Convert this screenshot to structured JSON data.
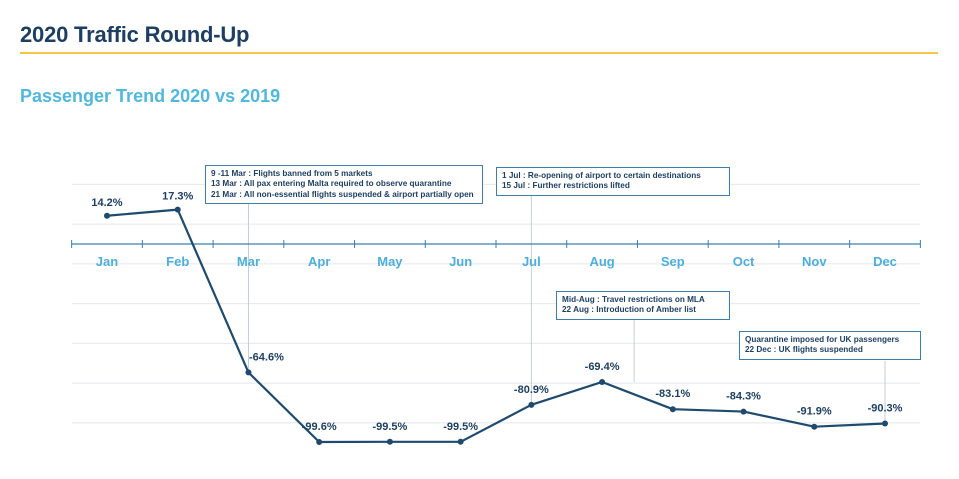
{
  "header": {
    "title": "2020 Traffic Round-Up"
  },
  "chart_data": {
    "type": "line",
    "title": "Passenger Trend 2020 vs 2019",
    "categories": [
      "Jan",
      "Feb",
      "Mar",
      "Apr",
      "May",
      "Jun",
      "Jul",
      "Aug",
      "Sep",
      "Oct",
      "Nov",
      "Dec"
    ],
    "series": [
      {
        "values": [
          14.2,
          17.3,
          -64.6,
          -99.6,
          -99.5,
          -99.5,
          -80.9,
          -69.4,
          -83.1,
          -84.3,
          -91.9,
          -90.3
        ]
      }
    ],
    "value_labels": [
      "14.2%",
      "17.3%",
      "-64.6%",
      "-99.6%",
      "-99.5%",
      "-99.5%",
      "-80.9%",
      "-69.4%",
      "-83.1%",
      "-84.3%",
      "-91.9%",
      "-90.3%"
    ],
    "ylim": [
      -110,
      40
    ],
    "grid": true,
    "annotations": [
      {
        "month": "Mar",
        "lines": [
          "9 -11 Mar : Flights banned from 5 markets",
          "13 Mar : All pax entering Malta required to observe quarantine",
          "21 Mar : All non-essential flights suspended & airport partially open"
        ]
      },
      {
        "month": "Jul",
        "lines": [
          "1 Jul : Re-opening of airport to certain destinations",
          "15 Jul : Further restrictions lifted"
        ]
      },
      {
        "month": "Aug",
        "lines": [
          "Mid-Aug : Travel restrictions on MLA",
          "22 Aug : Introduction of Amber list"
        ]
      },
      {
        "month": "Dec",
        "lines": [
          "Quarantine imposed for UK passengers",
          "22 Dec : UK flights suspended"
        ]
      }
    ],
    "colors": {
      "line": "#1d4a6e",
      "axis": "#3b7fb1",
      "month_labels": "#4aaee0",
      "title": "#4fb8e0",
      "accent_rule": "#f3c64a"
    }
  }
}
